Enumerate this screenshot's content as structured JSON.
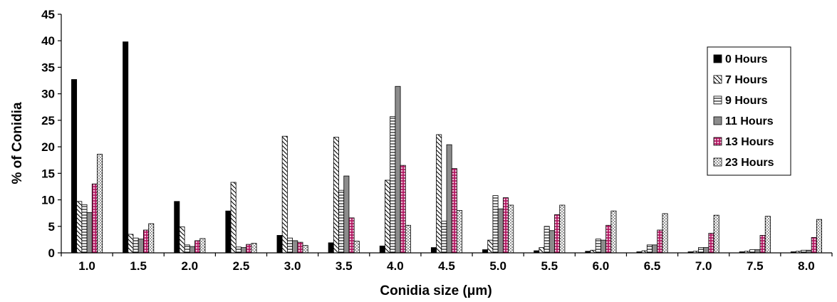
{
  "chart_data": {
    "type": "bar",
    "title": "",
    "xlabel": "Conidia size (μm)",
    "ylabel": "% of Conidia",
    "ylim": [
      0,
      45
    ],
    "yticks": [
      "0",
      "5",
      "10",
      "15",
      "20",
      "25",
      "30",
      "35",
      "40",
      "45"
    ],
    "categories": [
      "1.0",
      "1.5",
      "2.0",
      "2.5",
      "3.0",
      "3.5",
      "4.0",
      "4.5",
      "5.0",
      "5.5",
      "6.0",
      "6.5",
      "7.0",
      "7.5",
      "8.0"
    ],
    "legend_position": "right",
    "grid": false,
    "series": [
      {
        "name": "0 Hours",
        "pattern": "solid-black",
        "values": [
          32.7,
          39.8,
          9.7,
          7.9,
          3.3,
          1.9,
          1.3,
          1.0,
          0.6,
          0.4,
          0.3,
          0.2,
          0.2,
          0.2,
          0.2
        ]
      },
      {
        "name": "7 Hours",
        "pattern": "diagonal",
        "values": [
          9.7,
          3.5,
          4.9,
          13.3,
          22.0,
          21.8,
          13.7,
          22.3,
          2.4,
          1.0,
          0.5,
          0.4,
          0.3,
          0.3,
          0.3
        ]
      },
      {
        "name": "9 Hours",
        "pattern": "horizontal",
        "values": [
          9.1,
          2.8,
          1.5,
          1.1,
          2.8,
          11.8,
          25.7,
          6.0,
          10.8,
          5.0,
          2.6,
          1.5,
          1.0,
          0.6,
          0.5
        ]
      },
      {
        "name": "11 Hours",
        "pattern": "solid-gray",
        "values": [
          7.6,
          2.6,
          1.2,
          1.0,
          2.3,
          14.5,
          31.4,
          20.4,
          8.3,
          4.2,
          2.4,
          1.5,
          1.0,
          0.6,
          0.5
        ]
      },
      {
        "name": "13 Hours",
        "pattern": "magenta-grid",
        "values": [
          13.0,
          4.3,
          2.3,
          1.6,
          2.0,
          6.6,
          16.5,
          15.9,
          10.4,
          7.2,
          5.2,
          4.3,
          3.7,
          3.3,
          2.9
        ]
      },
      {
        "name": "23 Hours",
        "pattern": "dotted",
        "values": [
          18.6,
          5.5,
          2.7,
          1.8,
          1.4,
          2.2,
          5.2,
          8.0,
          9.0,
          9.0,
          7.9,
          7.4,
          7.1,
          6.9,
          6.3
        ]
      }
    ]
  }
}
